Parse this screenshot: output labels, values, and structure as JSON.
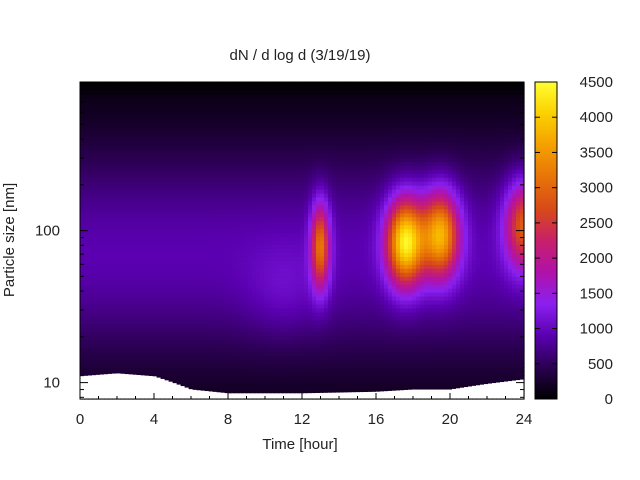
{
  "chart_data": {
    "type": "heatmap",
    "title": "dN / d log d (3/19/19)",
    "xlabel": "Time [hour]",
    "ylabel": "Particle size [nm]",
    "xlim": [
      0,
      24
    ],
    "x_ticks": [
      0,
      4,
      8,
      12,
      16,
      20,
      24
    ],
    "y_scale": "log",
    "ylim": [
      7.8,
      950
    ],
    "y_ticks": [
      10,
      100
    ],
    "colorbar": {
      "label": "",
      "range": [
        0,
        4500
      ],
      "ticks": [
        0,
        500,
        1000,
        1500,
        2000,
        2500,
        3000,
        3500,
        4000,
        4500
      ],
      "colormap": [
        [
          0,
          "#000000"
        ],
        [
          0.1,
          "#2a0050"
        ],
        [
          0.2,
          "#5a00b0"
        ],
        [
          0.3,
          "#8b20f0"
        ],
        [
          0.4,
          "#b012a8"
        ],
        [
          0.5,
          "#c8206a"
        ],
        [
          0.6,
          "#d84a18"
        ],
        [
          0.7,
          "#e87408"
        ],
        [
          0.8,
          "#f4a000"
        ],
        [
          0.9,
          "#fbd000"
        ],
        [
          1.0,
          "#ffff33"
        ]
      ]
    },
    "distribution_peaks": [
      {
        "time_hour": 13.0,
        "diameter_nm": 80,
        "dN_dlogd": 2900
      },
      {
        "time_hour": 17.6,
        "diameter_nm": 85,
        "dN_dlogd": 4100
      },
      {
        "time_hour": 19.5,
        "diameter_nm": 95,
        "dN_dlogd": 3500
      },
      {
        "time_hour": 24.0,
        "diameter_nm": 110,
        "dN_dlogd": 2700
      }
    ],
    "background_level": 900,
    "lower_size_limit_nm": [
      {
        "time_hour": 0.0,
        "diameter_nm": 11.0
      },
      {
        "time_hour": 2.0,
        "diameter_nm": 11.5
      },
      {
        "time_hour": 4.0,
        "diameter_nm": 11.0
      },
      {
        "time_hour": 6.0,
        "diameter_nm": 9.0
      },
      {
        "time_hour": 8.0,
        "diameter_nm": 8.5
      },
      {
        "time_hour": 12.0,
        "diameter_nm": 8.5
      },
      {
        "time_hour": 16.0,
        "diameter_nm": 8.7
      },
      {
        "time_hour": 18.0,
        "diameter_nm": 9.0
      },
      {
        "time_hour": 20.0,
        "diameter_nm": 9.0
      },
      {
        "time_hour": 22.0,
        "diameter_nm": 9.8
      },
      {
        "time_hour": 24.0,
        "diameter_nm": 10.5
      }
    ]
  }
}
